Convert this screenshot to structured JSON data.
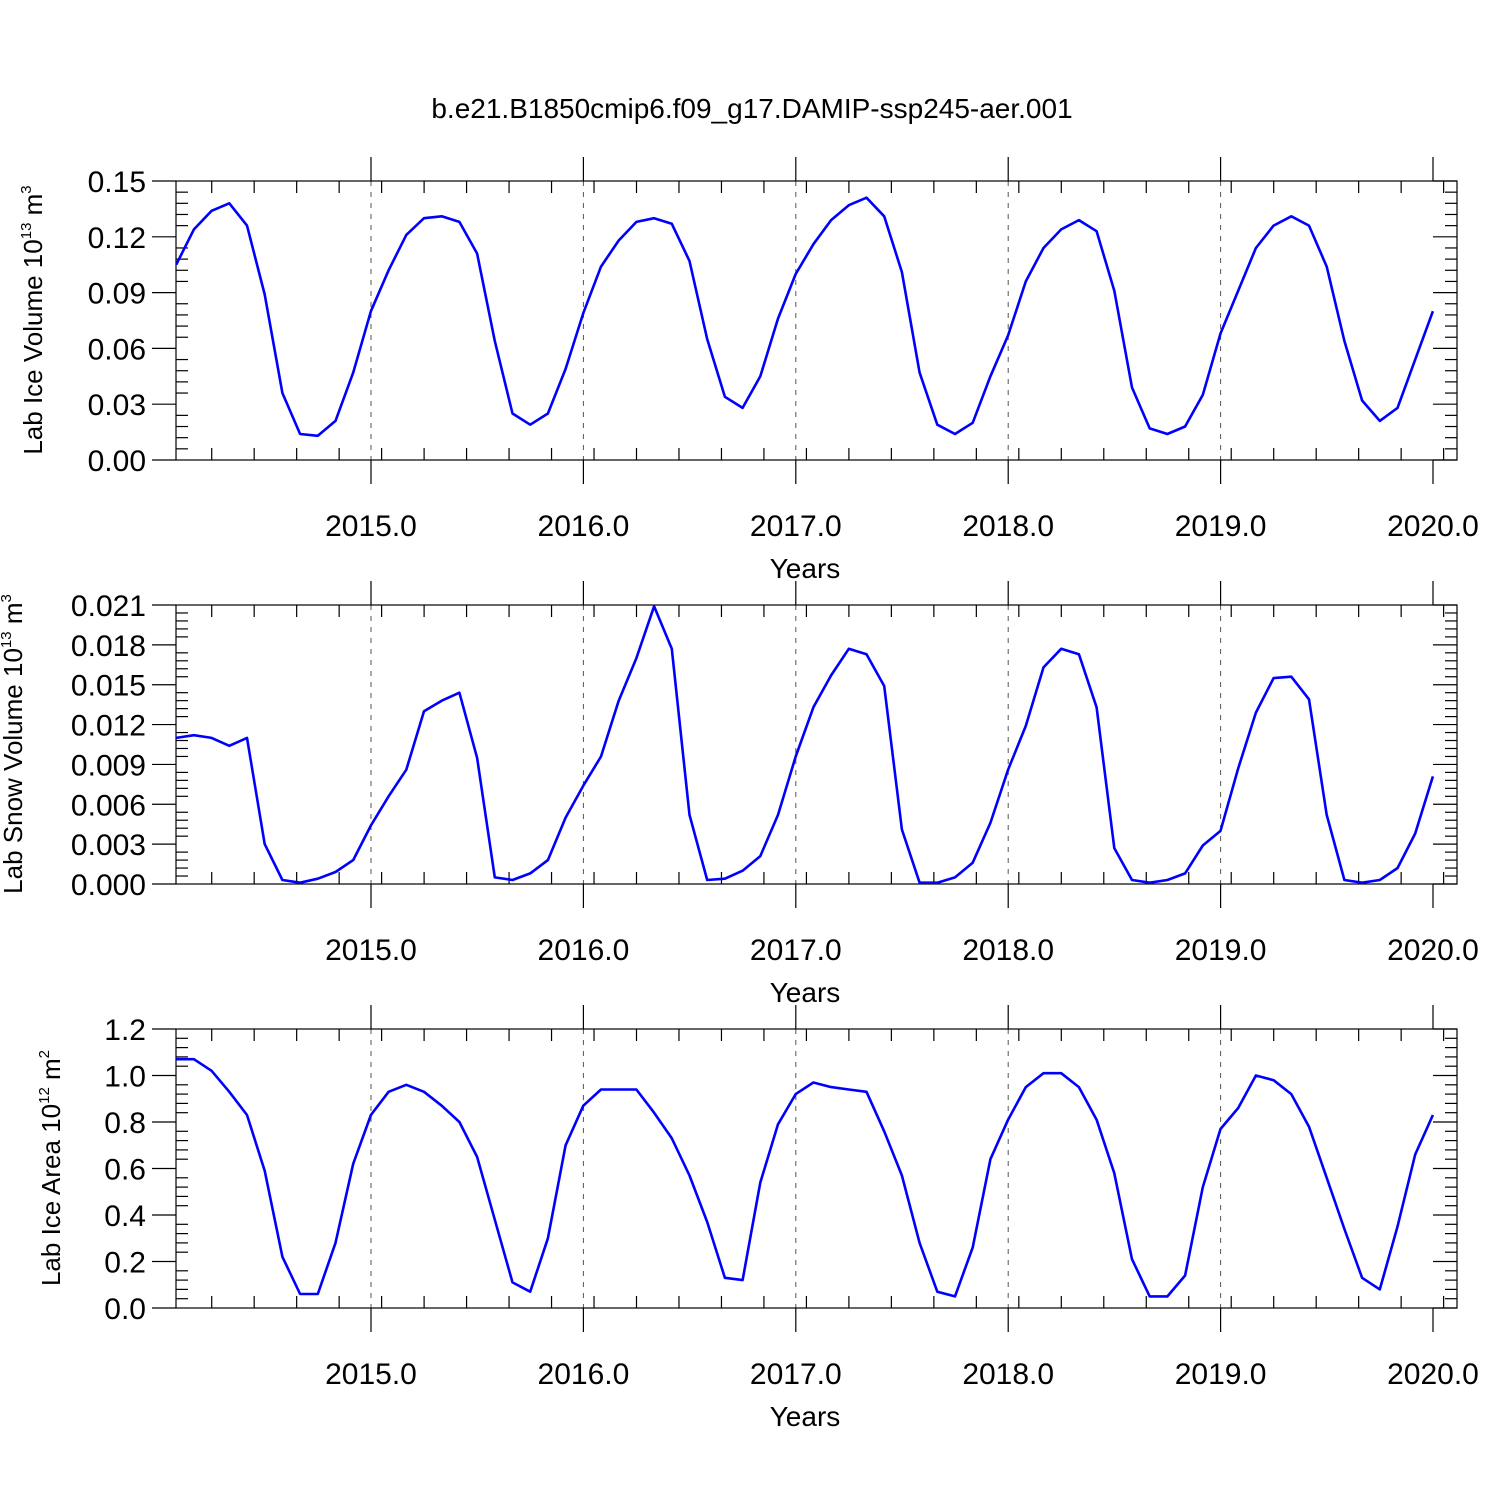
{
  "title": "b.e21.B1850cmip6.f09_g17.DAMIP-ssp245-aer.001",
  "colors": {
    "series": "#0000ff",
    "axis": "#000000"
  },
  "chart_data": [
    {
      "type": "line",
      "ylabel_main": "Lab Ice Volume 10",
      "ylabel_exp": "13",
      "ylabel_unit": " m",
      "ylabel_unit_exp": "3",
      "xlabel": "Years",
      "xlim": [
        2014.083,
        2020.125
      ],
      "ylim": [
        0,
        0.15
      ],
      "yticks": [
        0,
        0.03,
        0.06,
        0.09,
        0.12,
        0.15
      ],
      "ytick_labels": [
        "0.00",
        "0.03",
        "0.06",
        "0.09",
        "0.12",
        "0.15"
      ],
      "xticks": [
        2015,
        2016,
        2017,
        2018,
        2019,
        2020
      ],
      "xtick_labels": [
        "2015.0",
        "2016.0",
        "2017.0",
        "2018.0",
        "2019.0",
        "2020.0"
      ],
      "grid": "vertical dashed at major x ticks",
      "x_start": 2014.083,
      "x_step": 0.08333,
      "values": [
        0.105,
        0.124,
        0.134,
        0.138,
        0.126,
        0.089,
        0.036,
        0.014,
        0.013,
        0.021,
        0.047,
        0.08,
        0.102,
        0.121,
        0.13,
        0.131,
        0.128,
        0.111,
        0.064,
        0.025,
        0.019,
        0.025,
        0.049,
        0.079,
        0.104,
        0.118,
        0.128,
        0.13,
        0.127,
        0.107,
        0.065,
        0.034,
        0.028,
        0.045,
        0.076,
        0.1,
        0.116,
        0.129,
        0.137,
        0.141,
        0.131,
        0.101,
        0.047,
        0.019,
        0.014,
        0.02,
        0.045,
        0.067,
        0.096,
        0.114,
        0.124,
        0.129,
        0.123,
        0.091,
        0.039,
        0.017,
        0.014,
        0.018,
        0.035,
        0.068,
        0.091,
        0.114,
        0.126,
        0.131,
        0.126,
        0.104,
        0.064,
        0.032,
        0.021,
        0.028,
        0.054,
        0.08
      ]
    },
    {
      "type": "line",
      "ylabel_main": "Lab Snow Volume 10",
      "ylabel_exp": "13",
      "ylabel_unit": " m",
      "ylabel_unit_exp": "3",
      "xlabel": "Years",
      "xlim": [
        2014.083,
        2020.125
      ],
      "ylim": [
        0,
        0.021
      ],
      "yticks": [
        0,
        0.003,
        0.006,
        0.009,
        0.012,
        0.015,
        0.018,
        0.021
      ],
      "ytick_labels": [
        "0.000",
        "0.003",
        "0.006",
        "0.009",
        "0.012",
        "0.015",
        "0.018",
        "0.021"
      ],
      "xticks": [
        2015,
        2016,
        2017,
        2018,
        2019,
        2020
      ],
      "xtick_labels": [
        "2015.0",
        "2016.0",
        "2017.0",
        "2018.0",
        "2019.0",
        "2020.0"
      ],
      "grid": "vertical dashed at major x ticks",
      "x_start": 2014.083,
      "x_step": 0.08333,
      "values": [
        0.011,
        0.0112,
        0.011,
        0.0104,
        0.011,
        0.003,
        0.0003,
        0.0001,
        0.0004,
        0.0009,
        0.0018,
        0.0044,
        0.0066,
        0.0086,
        0.013,
        0.0138,
        0.0144,
        0.0095,
        0.0005,
        0.0003,
        0.0008,
        0.0018,
        0.005,
        0.0074,
        0.0096,
        0.0138,
        0.017,
        0.0209,
        0.0177,
        0.0052,
        0.0003,
        0.0004,
        0.001,
        0.0021,
        0.0052,
        0.0096,
        0.0133,
        0.0157,
        0.0177,
        0.0173,
        0.0149,
        0.0041,
        0.0001,
        0.0001,
        0.0005,
        0.0016,
        0.0046,
        0.0086,
        0.0119,
        0.0163,
        0.0177,
        0.0173,
        0.0133,
        0.0027,
        0.0003,
        0.0001,
        0.0003,
        0.0008,
        0.0029,
        0.004,
        0.0087,
        0.0129,
        0.0155,
        0.0156,
        0.0139,
        0.0052,
        0.0003,
        0.0001,
        0.0003,
        0.0012,
        0.0038,
        0.0081
      ]
    },
    {
      "type": "line",
      "ylabel_main": "Lab Ice Area 10",
      "ylabel_exp": "12",
      "ylabel_unit": " m",
      "ylabel_unit_exp": "2",
      "xlabel": "Years",
      "xlim": [
        2014.083,
        2020.125
      ],
      "ylim": [
        0,
        1.2
      ],
      "yticks": [
        0,
        0.2,
        0.4,
        0.6,
        0.8,
        1.0,
        1.2
      ],
      "ytick_labels": [
        "0.0",
        "0.2",
        "0.4",
        "0.6",
        "0.8",
        "1.0",
        "1.2"
      ],
      "xticks": [
        2015,
        2016,
        2017,
        2018,
        2019,
        2020
      ],
      "xtick_labels": [
        "2015.0",
        "2016.0",
        "2017.0",
        "2018.0",
        "2019.0",
        "2020.0"
      ],
      "grid": "vertical dashed at major x ticks",
      "x_start": 2014.083,
      "x_step": 0.08333,
      "values": [
        1.07,
        1.07,
        1.02,
        0.93,
        0.83,
        0.59,
        0.22,
        0.06,
        0.06,
        0.28,
        0.62,
        0.83,
        0.93,
        0.96,
        0.93,
        0.87,
        0.8,
        0.65,
        0.38,
        0.11,
        0.07,
        0.3,
        0.7,
        0.87,
        0.94,
        0.94,
        0.94,
        0.84,
        0.73,
        0.57,
        0.37,
        0.13,
        0.12,
        0.54,
        0.79,
        0.92,
        0.97,
        0.95,
        0.94,
        0.93,
        0.76,
        0.57,
        0.28,
        0.07,
        0.05,
        0.26,
        0.64,
        0.81,
        0.95,
        1.01,
        1.01,
        0.95,
        0.81,
        0.58,
        0.21,
        0.05,
        0.05,
        0.14,
        0.52,
        0.77,
        0.86,
        1.0,
        0.98,
        0.92,
        0.78,
        0.56,
        0.34,
        0.13,
        0.08,
        0.35,
        0.66,
        0.83
      ]
    }
  ]
}
